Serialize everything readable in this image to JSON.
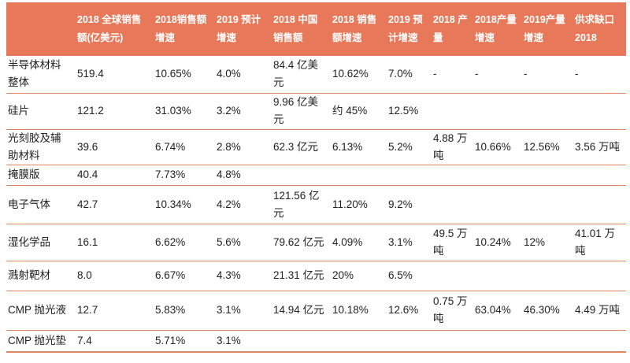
{
  "colors": {
    "header_bg": "#e7795a",
    "header_text": "#ffffff",
    "divider": "#dd8763",
    "body_text": "#212121"
  },
  "chart_data": {
    "type": "table",
    "title": "",
    "columns": [
      "",
      "2018 全球销售额(亿美元)",
      "2018销售额增速",
      "2019 预计增速",
      "2018 中国销售额",
      "2018 销售额增速",
      "2019 预计增速",
      "2018 产量",
      "2018产量增速",
      "2019产量增速",
      "供求缺口 2018"
    ],
    "rows": [
      [
        "半导体材料整体",
        "519.4",
        "10.65%",
        "4.0%",
        "84.4 亿美元",
        "10.62%",
        "7.0%",
        "-",
        "-",
        "-",
        "-"
      ],
      [
        "硅片",
        "121.2",
        "31.03%",
        "3.2%",
        "9.96 亿美元",
        "约 45%",
        "12.5%",
        "",
        "",
        "",
        ""
      ],
      [
        "光刻胶及辅助材料",
        "39.6",
        "6.74%",
        "2.8%",
        "62.3 亿元",
        "6.13%",
        "5.2%",
        "4.88 万吨",
        "10.66%",
        "12.56%",
        "3.56 万吨"
      ],
      [
        "掩膜版",
        "40.4",
        "7.73%",
        "4.8%",
        "",
        "",
        "",
        "",
        "",
        "",
        ""
      ],
      [
        "电子气体",
        "42.7",
        "10.34%",
        "4.2%",
        "121.56 亿元",
        "11.20%",
        "9.2%",
        "",
        "",
        "",
        ""
      ],
      [
        "湿化学品",
        "16.1",
        "6.62%",
        "5.6%",
        "79.62 亿元",
        "4.09%",
        "3.1%",
        "49.5 万吨",
        "10.24%",
        "12%",
        "41.01 万吨"
      ],
      [
        "溅射靶材",
        "8.0",
        "6.67%",
        "4.3%",
        "21.31 亿元",
        "20%",
        "6.5%",
        "",
        "",
        "",
        ""
      ],
      [
        "CMP 抛光液",
        "12.7",
        "5.83%",
        "3.1%",
        "14.94 亿元",
        "10.18%",
        "12.6%",
        "0.75 万吨",
        "63.04%",
        "46.30%",
        "4.49 万吨"
      ],
      [
        "CMP 抛光垫",
        "7.4",
        "5.71%",
        "3.1%",
        "",
        "",
        "",
        "",
        "",
        "",
        ""
      ]
    ]
  }
}
